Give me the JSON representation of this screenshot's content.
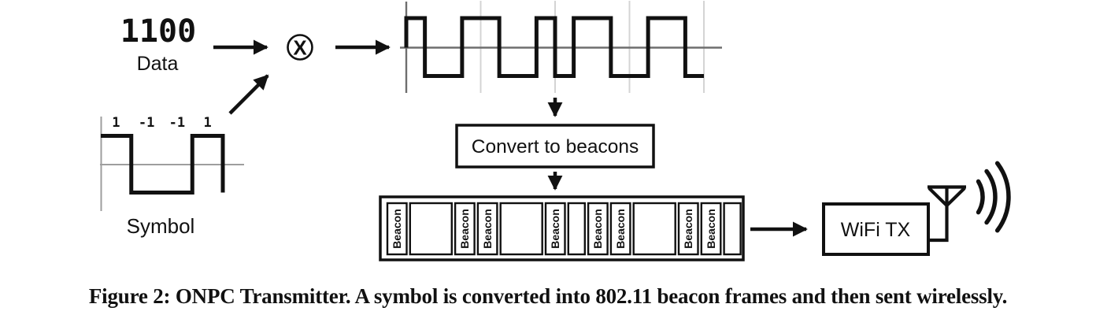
{
  "figure": {
    "caption": "Figure 2: ONPC Transmitter. A symbol is converted into 802.11 beacon frames and then sent wirelessly."
  },
  "data_block": {
    "bits": "1100",
    "label": "Data"
  },
  "symbol_block": {
    "label": "Symbol",
    "chip_labels": [
      "1",
      "-1",
      "-1",
      "1"
    ],
    "chips": [
      1,
      -1,
      -1,
      1
    ]
  },
  "multiplier": {
    "symbol": "X"
  },
  "product_wave": {
    "chips": [
      1,
      -1,
      -1,
      1,
      1,
      -1,
      -1,
      1,
      -1,
      1,
      1,
      -1,
      -1,
      1,
      1,
      -1
    ]
  },
  "convert_box": {
    "label": "Convert to beacons"
  },
  "beacon_frames": {
    "cells": [
      {
        "type": "beacon",
        "label": "Beacon",
        "w": 1
      },
      {
        "type": "gap",
        "w": 2
      },
      {
        "type": "beacon",
        "label": "Beacon",
        "w": 1
      },
      {
        "type": "beacon",
        "label": "Beacon",
        "w": 1
      },
      {
        "type": "gap",
        "w": 2
      },
      {
        "type": "beacon",
        "label": "Beacon",
        "w": 1
      },
      {
        "type": "gap",
        "w": 1
      },
      {
        "type": "beacon",
        "label": "Beacon",
        "w": 1
      },
      {
        "type": "beacon",
        "label": "Beacon",
        "w": 1
      },
      {
        "type": "gap",
        "w": 2
      },
      {
        "type": "beacon",
        "label": "Beacon",
        "w": 1
      },
      {
        "type": "beacon",
        "label": "Beacon",
        "w": 1
      },
      {
        "type": "gap",
        "w": 1
      }
    ]
  },
  "wifi_box": {
    "label": "WiFi TX"
  },
  "colors": {
    "ink": "#111111",
    "axis_dark": "#6e6e6e",
    "axis_light": "#9e9e9e",
    "gridline": "#d4d4d4",
    "background": "#ffffff"
  },
  "chart_data": [
    {
      "type": "line",
      "title": "Symbol",
      "subtype": "square-wave",
      "x": [
        1,
        2,
        3,
        4
      ],
      "values": [
        1,
        -1,
        -1,
        1
      ],
      "ylim": [
        -1,
        1
      ],
      "annotations": [
        "1",
        "-1",
        "-1",
        "1"
      ],
      "grid": false
    },
    {
      "type": "line",
      "title": "Spread waveform (Data 1100 multiplied by Symbol)",
      "subtype": "square-wave",
      "x": [
        1,
        2,
        3,
        4,
        5,
        6,
        7,
        8,
        9,
        10,
        11,
        12,
        13,
        14,
        15,
        16
      ],
      "values": [
        1,
        -1,
        -1,
        1,
        1,
        -1,
        -1,
        1,
        -1,
        1,
        1,
        -1,
        -1,
        1,
        1,
        -1
      ],
      "ylim": [
        -1,
        1
      ],
      "grid": "vertical lines at each symbol boundary (every 4 chips)"
    }
  ]
}
